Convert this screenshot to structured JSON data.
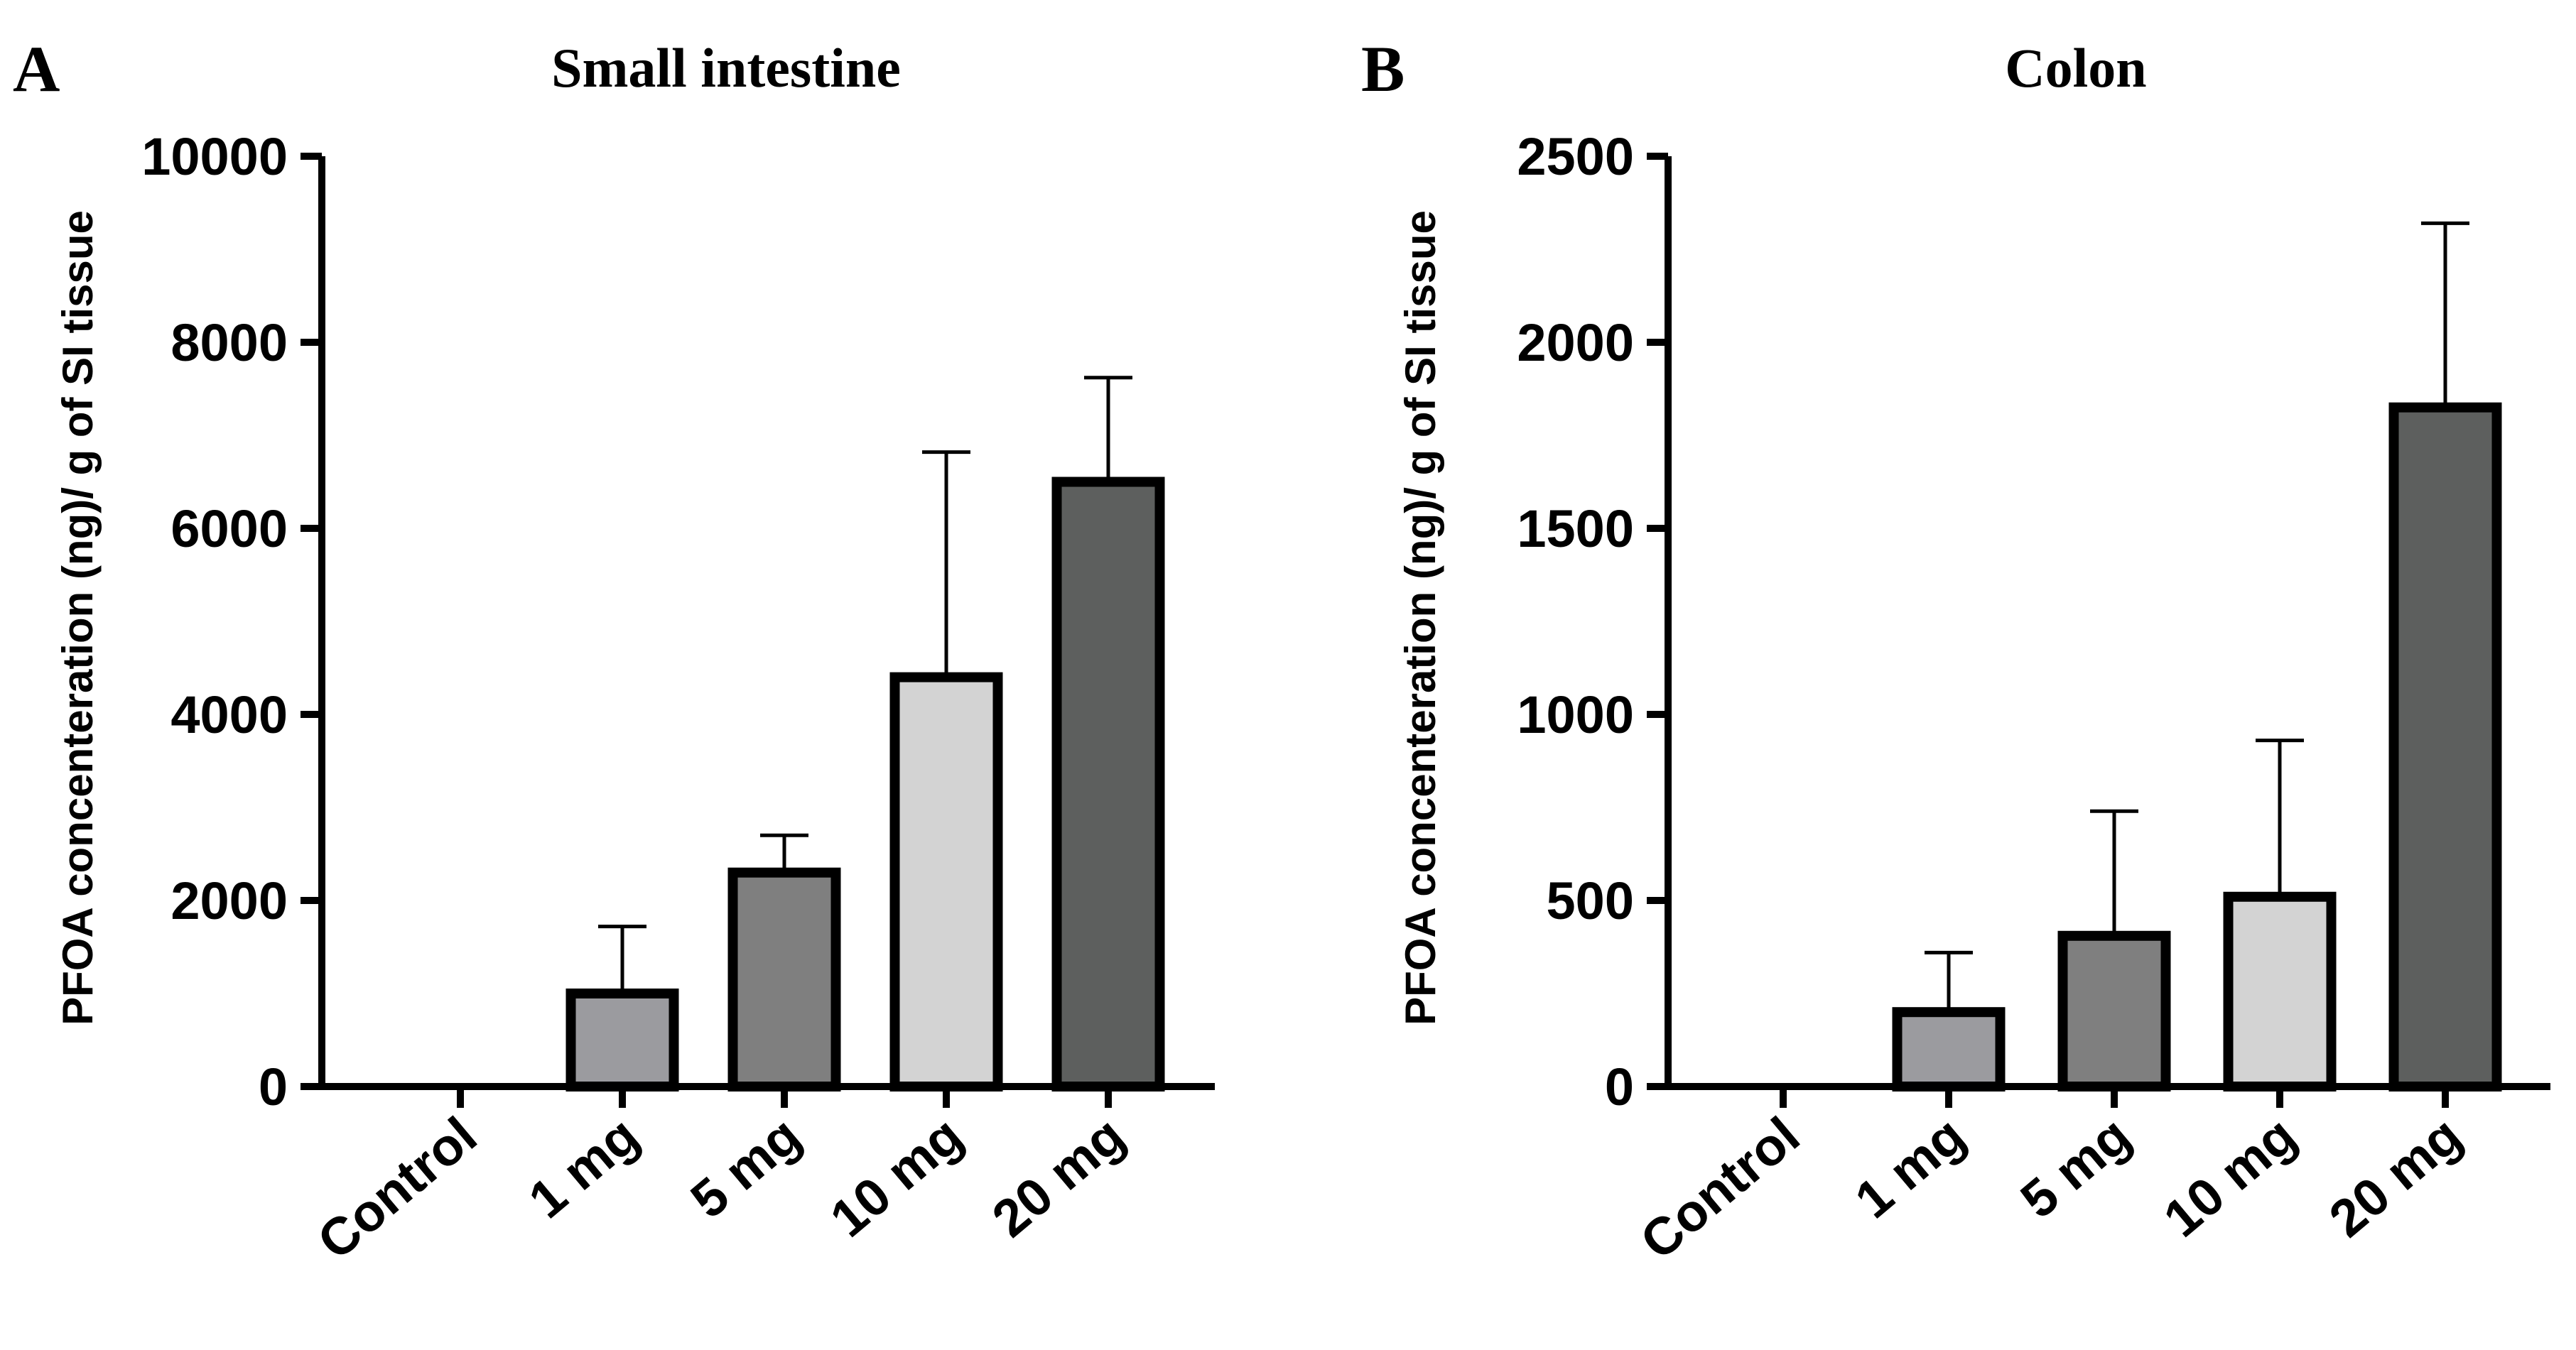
{
  "chart_data": [
    {
      "type": "bar",
      "panel": "A",
      "title": "Small intestine",
      "ylabel": "PFOA concenteration (ng)/ g of SI tissue",
      "xlabel": "",
      "categories": [
        "Control",
        "1 mg",
        "5 mg",
        "10 mg",
        "20 mg"
      ],
      "values": [
        0,
        1000,
        2300,
        4400,
        6500
      ],
      "errors": [
        0,
        720,
        400,
        2420,
        1120
      ],
      "ylim": [
        0,
        10000
      ],
      "yticks": [
        0,
        2000,
        4000,
        6000,
        8000,
        10000
      ],
      "colors": [
        "#ffffff",
        "#9b9b9f",
        "#7f7f7f",
        "#d3d3d3",
        "#5d5f5e"
      ],
      "grid": false
    },
    {
      "type": "bar",
      "panel": "B",
      "title": "Colon",
      "ylabel": "PFOA concenteration (ng)/ g of SI tissue",
      "xlabel": "",
      "categories": [
        "Control",
        "1 mg",
        "5 mg",
        "10 mg",
        "20 mg"
      ],
      "values": [
        0,
        200,
        405,
        510,
        1825
      ],
      "errors": [
        0,
        160,
        335,
        420,
        495
      ],
      "ylim": [
        0,
        2500
      ],
      "yticks": [
        0,
        500,
        1000,
        1500,
        2000,
        2500
      ],
      "colors": [
        "#ffffff",
        "#9b9b9f",
        "#7f7f7f",
        "#d3d3d3",
        "#5d5f5e"
      ],
      "grid": false
    }
  ]
}
